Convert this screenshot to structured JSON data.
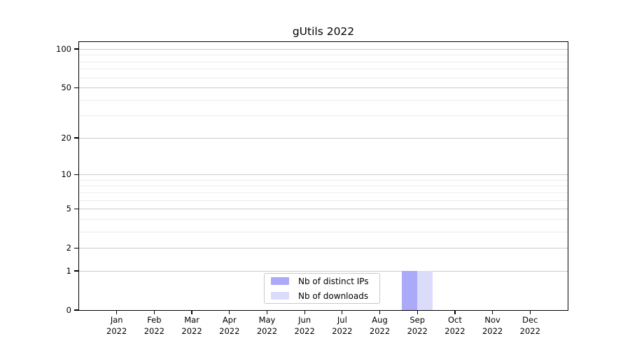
{
  "title": "gUtils 2022",
  "legend": {
    "items": [
      {
        "label": "Nb of distinct IPs",
        "color": "#aaaaf8",
        "slug": "distinct-ips"
      },
      {
        "label": "Nb of downloads",
        "color": "#dbdbfa",
        "slug": "downloads"
      }
    ],
    "position": "lower center"
  },
  "x_axis": {
    "ticks": [
      {
        "month": "Jan",
        "year": "2022"
      },
      {
        "month": "Feb",
        "year": "2022"
      },
      {
        "month": "Mar",
        "year": "2022"
      },
      {
        "month": "Apr",
        "year": "2022"
      },
      {
        "month": "May",
        "year": "2022"
      },
      {
        "month": "Jun",
        "year": "2022"
      },
      {
        "month": "Jul",
        "year": "2022"
      },
      {
        "month": "Aug",
        "year": "2022"
      },
      {
        "month": "Sep",
        "year": "2022"
      },
      {
        "month": "Oct",
        "year": "2022"
      },
      {
        "month": "Nov",
        "year": "2022"
      },
      {
        "month": "Dec",
        "year": "2022"
      }
    ]
  },
  "chart_data": {
    "type": "bar",
    "title": "gUtils 2022",
    "categories": [
      "Jan 2022",
      "Feb 2022",
      "Mar 2022",
      "Apr 2022",
      "May 2022",
      "Jun 2022",
      "Jul 2022",
      "Aug 2022",
      "Sep 2022",
      "Oct 2022",
      "Nov 2022",
      "Dec 2022"
    ],
    "series": [
      {
        "name": "Nb of distinct IPs",
        "slug": "distinct-ips",
        "color": "#aaaaf8",
        "values": [
          0,
          0,
          0,
          0,
          0,
          0,
          0,
          0,
          1,
          0,
          0,
          0
        ]
      },
      {
        "name": "Nb of downloads",
        "slug": "downloads",
        "color": "#dbdbfa",
        "values": [
          0,
          0,
          0,
          0,
          0,
          0,
          0,
          0,
          1,
          0,
          0,
          0
        ]
      }
    ],
    "xlabel": "",
    "ylabel": "",
    "yscale": "log1p",
    "ylim": [
      0,
      114
    ],
    "y_major_ticks": [
      100,
      50,
      20,
      10,
      5,
      2,
      1,
      0
    ],
    "y_minor_ticks": [
      90,
      80,
      70,
      60,
      40,
      30,
      9,
      8,
      7,
      6,
      4,
      3
    ],
    "grid": "horizontal major+minor",
    "legend_position": "lower center"
  },
  "colors": {
    "major_grid": "#cbcbcb",
    "minor_grid": "#ececec",
    "spine": "#000000",
    "legend_border": "#c9c9c9",
    "background": "#ffffff"
  }
}
